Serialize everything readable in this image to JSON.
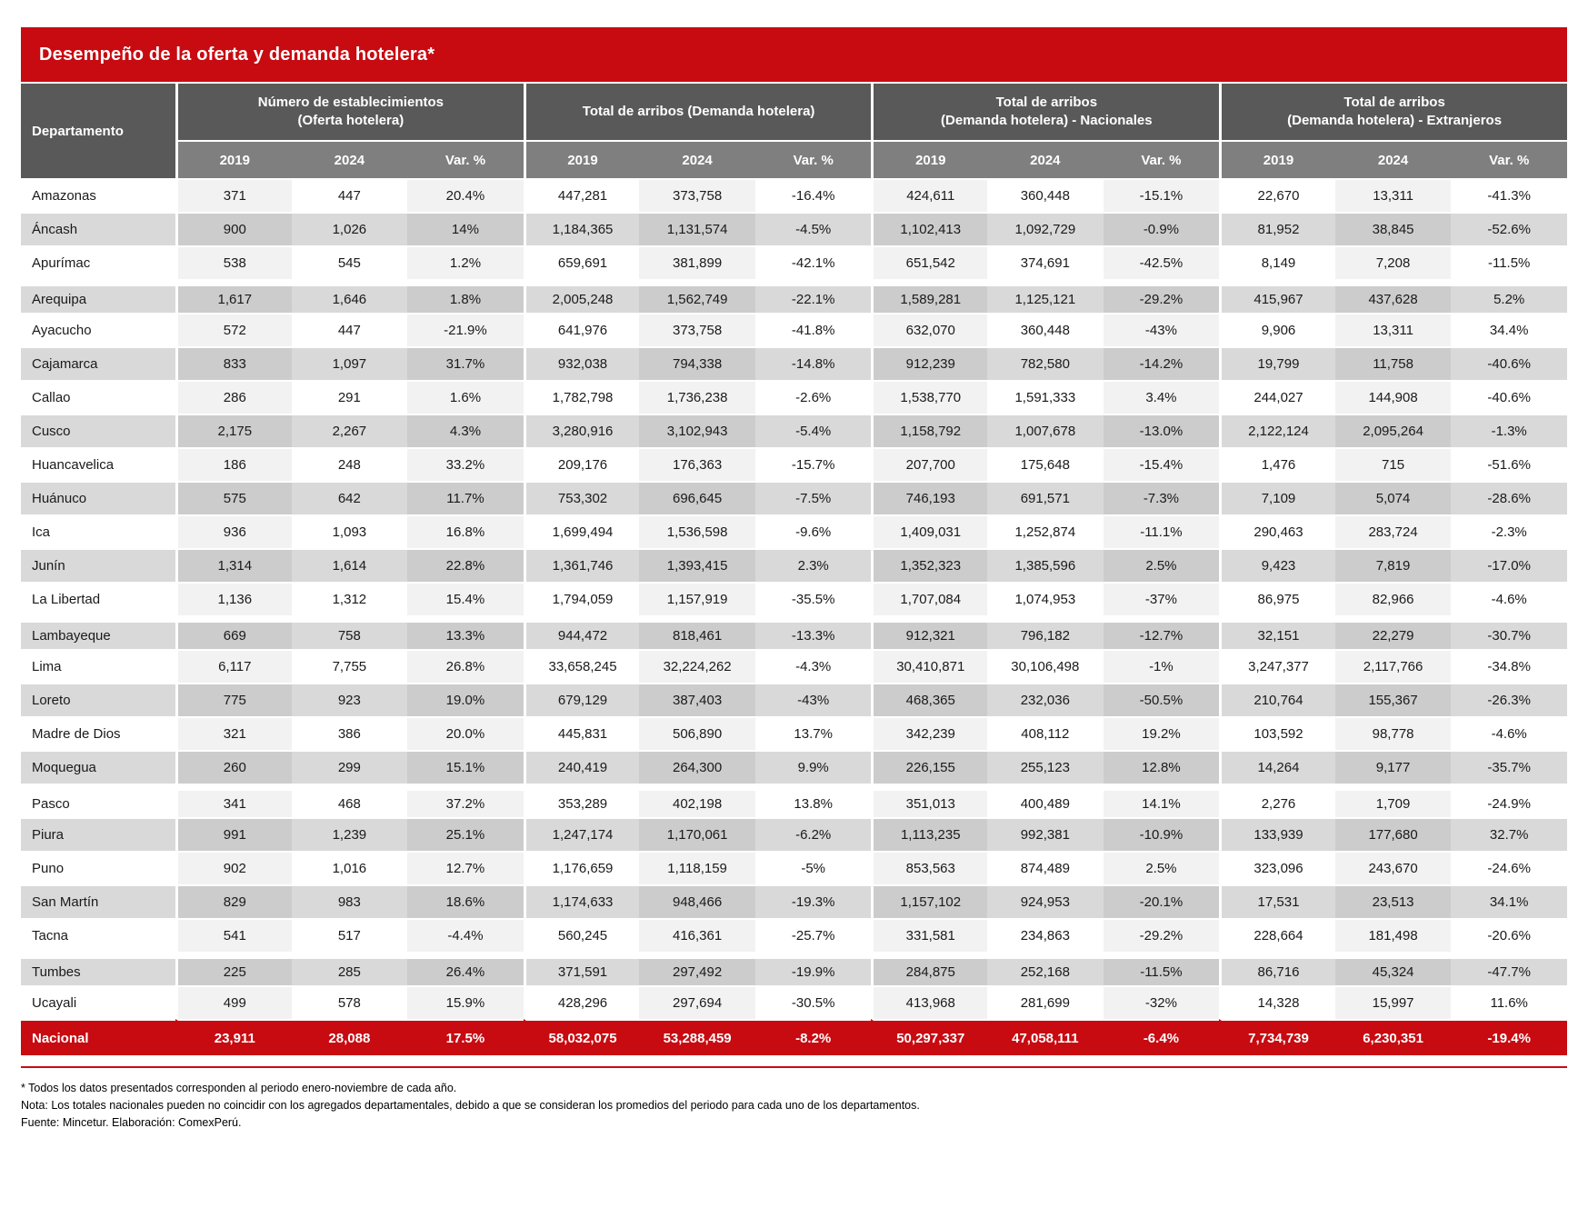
{
  "title": "Desempeño de la oferta y demanda hotelera*",
  "chart_data": {
    "type": "table",
    "department_header": "Departamento",
    "column_groups": [
      {
        "line1": "Número de establecimientos",
        "line2": "(Oferta hotelera)"
      },
      {
        "line1": "Total de arribos (Demanda hotelera)",
        "line2": ""
      },
      {
        "line1": "Total de arribos",
        "line2": "(Demanda hotelera) - Nacionales"
      },
      {
        "line1": "Total de arribos",
        "line2": "(Demanda hotelera) - Extranjeros"
      }
    ],
    "sub_columns": [
      "2019",
      "2024",
      "Var. %"
    ],
    "rows": [
      {
        "department": "Amazonas",
        "gap": false,
        "values": [
          "371",
          "447",
          "20.4%",
          "447,281",
          "373,758",
          "-16.4%",
          "424,611",
          "360,448",
          "-15.1%",
          "22,670",
          "13,311",
          "-41.3%"
        ]
      },
      {
        "department": "Áncash",
        "gap": false,
        "values": [
          "900",
          "1,026",
          "14%",
          "1,184,365",
          "1,131,574",
          "-4.5%",
          "1,102,413",
          "1,092,729",
          "-0.9%",
          "81,952",
          "38,845",
          "-52.6%"
        ]
      },
      {
        "department": "Apurímac",
        "gap": false,
        "values": [
          "538",
          "545",
          "1.2%",
          "659,691",
          "381,899",
          "-42.1%",
          "651,542",
          "374,691",
          "-42.5%",
          "8,149",
          "7,208",
          "-11.5%"
        ]
      },
      {
        "department": "Arequipa",
        "gap": true,
        "values": [
          "1,617",
          "1,646",
          "1.8%",
          "2,005,248",
          "1,562,749",
          "-22.1%",
          "1,589,281",
          "1,125,121",
          "-29.2%",
          "415,967",
          "437,628",
          "5.2%"
        ]
      },
      {
        "department": "Ayacucho",
        "gap": false,
        "values": [
          "572",
          "447",
          "-21.9%",
          "641,976",
          "373,758",
          "-41.8%",
          "632,070",
          "360,448",
          "-43%",
          "9,906",
          "13,311",
          "34.4%"
        ]
      },
      {
        "department": "Cajamarca",
        "gap": false,
        "values": [
          "833",
          "1,097",
          "31.7%",
          "932,038",
          "794,338",
          "-14.8%",
          "912,239",
          "782,580",
          "-14.2%",
          "19,799",
          "11,758",
          "-40.6%"
        ]
      },
      {
        "department": "Callao",
        "gap": false,
        "values": [
          "286",
          "291",
          "1.6%",
          "1,782,798",
          "1,736,238",
          "-2.6%",
          "1,538,770",
          "1,591,333",
          "3.4%",
          "244,027",
          "144,908",
          "-40.6%"
        ]
      },
      {
        "department": "Cusco",
        "gap": false,
        "values": [
          "2,175",
          "2,267",
          "4.3%",
          "3,280,916",
          "3,102,943",
          "-5.4%",
          "1,158,792",
          "1,007,678",
          "-13.0%",
          "2,122,124",
          "2,095,264",
          "-1.3%"
        ]
      },
      {
        "department": "Huancavelica",
        "gap": false,
        "values": [
          "186",
          "248",
          "33.2%",
          "209,176",
          "176,363",
          "-15.7%",
          "207,700",
          "175,648",
          "-15.4%",
          "1,476",
          "715",
          "-51.6%"
        ]
      },
      {
        "department": "Huánuco",
        "gap": false,
        "values": [
          "575",
          "642",
          "11.7%",
          "753,302",
          "696,645",
          "-7.5%",
          "746,193",
          "691,571",
          "-7.3%",
          "7,109",
          "5,074",
          "-28.6%"
        ]
      },
      {
        "department": "Ica",
        "gap": false,
        "values": [
          "936",
          "1,093",
          "16.8%",
          "1,699,494",
          "1,536,598",
          "-9.6%",
          "1,409,031",
          "1,252,874",
          "-11.1%",
          "290,463",
          "283,724",
          "-2.3%"
        ]
      },
      {
        "department": "Junín",
        "gap": false,
        "values": [
          "1,314",
          "1,614",
          "22.8%",
          "1,361,746",
          "1,393,415",
          "2.3%",
          "1,352,323",
          "1,385,596",
          "2.5%",
          "9,423",
          "7,819",
          "-17.0%"
        ]
      },
      {
        "department": "La Libertad",
        "gap": false,
        "values": [
          "1,136",
          "1,312",
          "15.4%",
          "1,794,059",
          "1,157,919",
          "-35.5%",
          "1,707,084",
          "1,074,953",
          "-37%",
          "86,975",
          "82,966",
          "-4.6%"
        ]
      },
      {
        "department": "Lambayeque",
        "gap": true,
        "values": [
          "669",
          "758",
          "13.3%",
          "944,472",
          "818,461",
          "-13.3%",
          "912,321",
          "796,182",
          "-12.7%",
          "32,151",
          "22,279",
          "-30.7%"
        ]
      },
      {
        "department": "Lima",
        "gap": false,
        "values": [
          "6,117",
          "7,755",
          "26.8%",
          "33,658,245",
          "32,224,262",
          "-4.3%",
          "30,410,871",
          "30,106,498",
          "-1%",
          "3,247,377",
          "2,117,766",
          "-34.8%"
        ]
      },
      {
        "department": "Loreto",
        "gap": false,
        "values": [
          "775",
          "923",
          "19.0%",
          "679,129",
          "387,403",
          "-43%",
          "468,365",
          "232,036",
          "-50.5%",
          "210,764",
          "155,367",
          "-26.3%"
        ]
      },
      {
        "department": "Madre de Dios",
        "gap": false,
        "values": [
          "321",
          "386",
          "20.0%",
          "445,831",
          "506,890",
          "13.7%",
          "342,239",
          "408,112",
          "19.2%",
          "103,592",
          "98,778",
          "-4.6%"
        ]
      },
      {
        "department": "Moquegua",
        "gap": false,
        "values": [
          "260",
          "299",
          "15.1%",
          "240,419",
          "264,300",
          "9.9%",
          "226,155",
          "255,123",
          "12.8%",
          "14,264",
          "9,177",
          "-35.7%"
        ]
      },
      {
        "department": "Pasco",
        "gap": true,
        "values": [
          "341",
          "468",
          "37.2%",
          "353,289",
          "402,198",
          "13.8%",
          "351,013",
          "400,489",
          "14.1%",
          "2,276",
          "1,709",
          "-24.9%"
        ]
      },
      {
        "department": "Piura",
        "gap": false,
        "values": [
          "991",
          "1,239",
          "25.1%",
          "1,247,174",
          "1,170,061",
          "-6.2%",
          "1,113,235",
          "992,381",
          "-10.9%",
          "133,939",
          "177,680",
          "32.7%"
        ]
      },
      {
        "department": "Puno",
        "gap": false,
        "values": [
          "902",
          "1,016",
          "12.7%",
          "1,176,659",
          "1,118,159",
          "-5%",
          "853,563",
          "874,489",
          "2.5%",
          "323,096",
          "243,670",
          "-24.6%"
        ]
      },
      {
        "department": "San Martín",
        "gap": false,
        "values": [
          "829",
          "983",
          "18.6%",
          "1,174,633",
          "948,466",
          "-19.3%",
          "1,157,102",
          "924,953",
          "-20.1%",
          "17,531",
          "23,513",
          "34.1%"
        ]
      },
      {
        "department": "Tacna",
        "gap": false,
        "values": [
          "541",
          "517",
          "-4.4%",
          "560,245",
          "416,361",
          "-25.7%",
          "331,581",
          "234,863",
          "-29.2%",
          "228,664",
          "181,498",
          "-20.6%"
        ]
      },
      {
        "department": "Tumbes",
        "gap": true,
        "values": [
          "225",
          "285",
          "26.4%",
          "371,591",
          "297,492",
          "-19.9%",
          "284,875",
          "252,168",
          "-11.5%",
          "86,716",
          "45,324",
          "-47.7%"
        ]
      },
      {
        "department": "Ucayali",
        "gap": false,
        "values": [
          "499",
          "578",
          "15.9%",
          "428,296",
          "297,694",
          "-30.5%",
          "413,968",
          "281,699",
          "-32%",
          "14,328",
          "15,997",
          "11.6%"
        ]
      }
    ],
    "total": {
      "department": "Nacional",
      "values": [
        "23,911",
        "28,088",
        "17.5%",
        "58,032,075",
        "53,288,459",
        "-8.2%",
        "50,297,337",
        "47,058,111",
        "-6.4%",
        "7,734,739",
        "6,230,351",
        "-19.4%"
      ]
    }
  },
  "footnotes": [
    "* Todos los datos presentados corresponden al periodo enero-noviembre de cada año.",
    "Nota: Los totales nacionales pueden no coincidir con los agregados departamentales, debido a que se consideran los promedios del periodo para cada uno de los departamentos.",
    "Fuente: Mincetur. Elaboración: ComexPerú."
  ],
  "colors": {
    "accent_red": "#c80a11",
    "header_dark_gray": "#595959",
    "header_mid_gray": "#7f7f7f",
    "row_gray": "#d9d9d9",
    "row_gray_tint": "#cccccc",
    "row_white": "#ffffff",
    "row_white_tint": "#f2f2f2"
  }
}
